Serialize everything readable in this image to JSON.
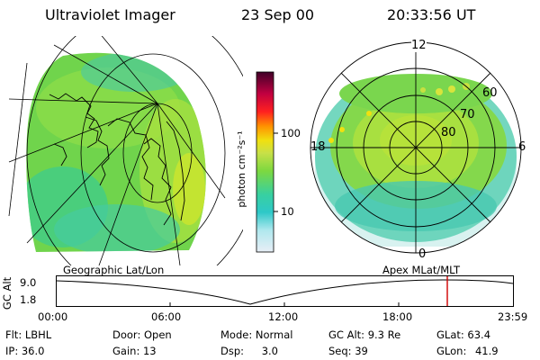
{
  "header": {
    "instrument": "Ultraviolet Imager",
    "date": "23 Sep 00",
    "time": "20:33:56 UT"
  },
  "colorbar": {
    "unit_label": "photon cm⁻²s⁻¹",
    "ticks": [
      "100",
      "10"
    ],
    "scale": "log",
    "colors": [
      "#e8eef6",
      "#2ec8c8",
      "#38d0a0",
      "#7cd840",
      "#c8e048",
      "#f0e010",
      "#ff9000",
      "#ff2020",
      "#c00040",
      "#400028"
    ]
  },
  "geo_panel": {
    "label": "Geographic Lat/Lon"
  },
  "polar_panel": {
    "label": "Apex MLat/MLT",
    "mlt_labels": {
      "top": "12",
      "left": "18",
      "right": "6",
      "bottom": "0"
    },
    "lat_labels": [
      "60",
      "70",
      "80"
    ]
  },
  "altitude_plot": {
    "ylabel": "GC Alt",
    "yticks": [
      "9.0",
      "1.8"
    ],
    "xticks": [
      "00:00",
      "06:00",
      "12:00",
      "18:00",
      "23:59"
    ],
    "marker_color": "#d00000"
  },
  "status": {
    "row1": [
      {
        "key": "Flt:",
        "value": "LBHL"
      },
      {
        "key": "Door:",
        "value": "Open"
      },
      {
        "key": "Mode:",
        "value": "Normal"
      },
      {
        "key": "GC Alt:",
        "value": "9.3 Re"
      },
      {
        "key": "GLat:",
        "value": "63.4"
      }
    ],
    "row2": [
      {
        "key": "IP:",
        "value": "36.0"
      },
      {
        "key": "Gain:",
        "value": "13"
      },
      {
        "key": "Dsp:",
        "value": "3.0"
      },
      {
        "key": "Seq:",
        "value": "39"
      },
      {
        "key": "GLon:",
        "value": "41.9"
      }
    ]
  }
}
